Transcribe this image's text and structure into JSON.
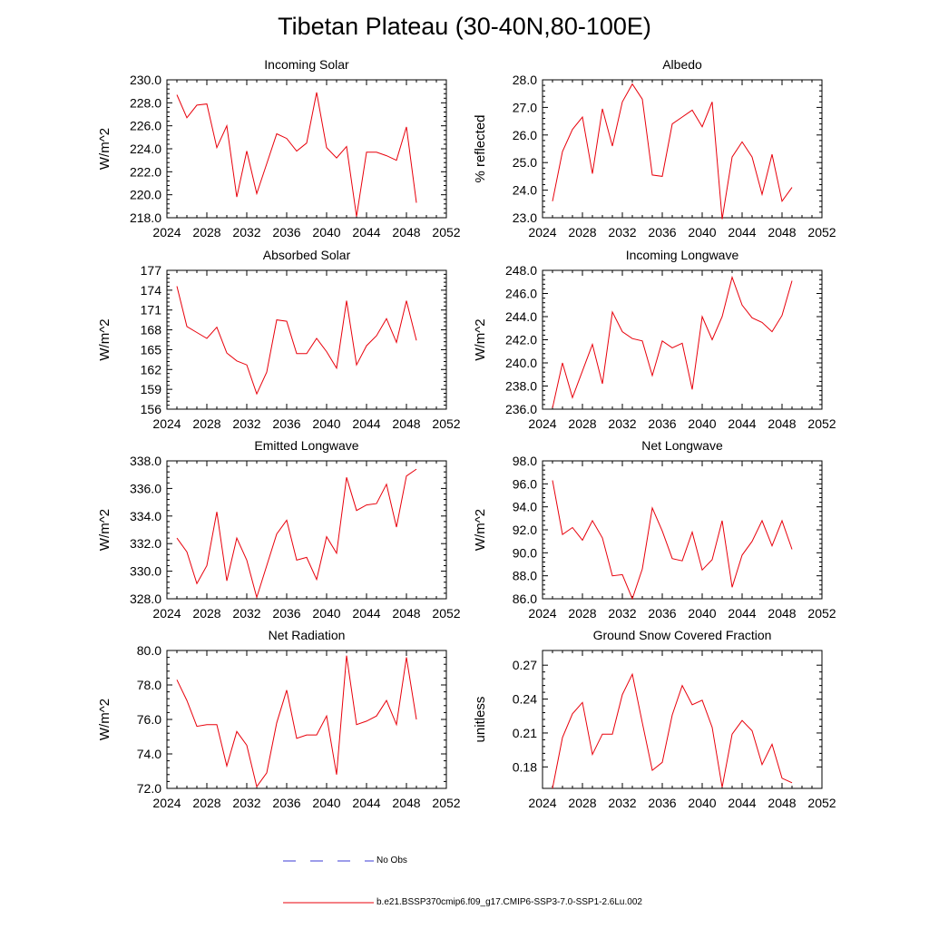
{
  "page": {
    "title": "Tibetan Plateau (30-40N,80-100E)"
  },
  "legend": {
    "obs_label": "No Obs",
    "model_label": "b.e21.BSSP370cmip6.f09_g17.CMIP6-SSP3-7.0-SSP1-2.6Lu.002",
    "obs_color": "#3b3bd6",
    "model_color": "#e8000b"
  },
  "chart_data": [
    {
      "type": "line",
      "title": "Incoming Solar",
      "ylabel": "W/m^2",
      "xlim": [
        2024,
        2052
      ],
      "xticks": [
        "2024",
        "2028",
        "2032",
        "2036",
        "2040",
        "2044",
        "2048",
        "2052"
      ],
      "ylim": [
        218,
        230
      ],
      "yticks": [
        "218.0",
        "220.0",
        "222.0",
        "224.0",
        "226.0",
        "228.0",
        "230.0"
      ],
      "x": [
        2025,
        2026,
        2027,
        2028,
        2029,
        2030,
        2031,
        2032,
        2033,
        2034,
        2035,
        2036,
        2037,
        2038,
        2039,
        2040,
        2041,
        2042,
        2043,
        2044,
        2045,
        2046,
        2047,
        2048,
        2049
      ],
      "series": [
        {
          "color": "#e8000b",
          "values": [
            228.7,
            226.7,
            227.8,
            227.9,
            224.1,
            226.0,
            219.8,
            223.8,
            220.1,
            222.7,
            225.3,
            224.9,
            223.8,
            224.5,
            228.9,
            224.1,
            223.2,
            224.2,
            218.1,
            223.7,
            223.7,
            223.4,
            223.0,
            225.9,
            219.3
          ]
        }
      ]
    },
    {
      "type": "line",
      "title": "Albedo",
      "ylabel": "% reflected",
      "xlim": [
        2024,
        2052
      ],
      "xticks": [
        "2024",
        "2028",
        "2032",
        "2036",
        "2040",
        "2044",
        "2048",
        "2052"
      ],
      "ylim": [
        23,
        28
      ],
      "yticks": [
        "23.0",
        "24.0",
        "25.0",
        "26.0",
        "27.0",
        "28.0"
      ],
      "x": [
        2025,
        2026,
        2027,
        2028,
        2029,
        2030,
        2031,
        2032,
        2033,
        2034,
        2035,
        2036,
        2037,
        2038,
        2039,
        2040,
        2041,
        2042,
        2043,
        2044,
        2045,
        2046,
        2047,
        2048,
        2049
      ],
      "series": [
        {
          "color": "#e8000b",
          "values": [
            23.6,
            25.4,
            26.2,
            26.65,
            24.6,
            26.95,
            25.6,
            27.2,
            27.85,
            27.3,
            24.55,
            24.5,
            26.4,
            26.65,
            26.9,
            26.3,
            27.2,
            22.95,
            25.2,
            25.75,
            25.2,
            23.85,
            25.3,
            23.6,
            24.1
          ]
        }
      ]
    },
    {
      "type": "line",
      "title": "Absorbed Solar",
      "ylabel": "W/m^2",
      "xlim": [
        2024,
        2052
      ],
      "xticks": [
        "2024",
        "2028",
        "2032",
        "2036",
        "2040",
        "2044",
        "2048",
        "2052"
      ],
      "ylim": [
        156,
        177
      ],
      "yticks": [
        "156",
        "159",
        "162",
        "165",
        "168",
        "171",
        "174",
        "177"
      ],
      "x": [
        2025,
        2026,
        2027,
        2028,
        2029,
        2030,
        2031,
        2032,
        2033,
        2034,
        2035,
        2036,
        2037,
        2038,
        2039,
        2040,
        2041,
        2042,
        2043,
        2044,
        2045,
        2046,
        2047,
        2048,
        2049
      ],
      "series": [
        {
          "color": "#e8000b",
          "values": [
            174.6,
            168.5,
            167.6,
            166.7,
            168.4,
            164.5,
            163.3,
            162.7,
            158.3,
            161.6,
            169.5,
            169.3,
            164.4,
            164.4,
            166.7,
            164.7,
            162.2,
            172.4,
            162.7,
            165.6,
            167.1,
            169.7,
            166.1,
            172.4,
            166.4
          ]
        }
      ]
    },
    {
      "type": "line",
      "title": "Incoming Longwave",
      "ylabel": "W/m^2",
      "xlim": [
        2024,
        2052
      ],
      "xticks": [
        "2024",
        "2028",
        "2032",
        "2036",
        "2040",
        "2044",
        "2048",
        "2052"
      ],
      "ylim": [
        236,
        248
      ],
      "yticks": [
        "236.0",
        "238.0",
        "240.0",
        "242.0",
        "244.0",
        "246.0",
        "248.0"
      ],
      "x": [
        2025,
        2026,
        2027,
        2028,
        2029,
        2030,
        2031,
        2032,
        2033,
        2034,
        2035,
        2036,
        2037,
        2038,
        2039,
        2040,
        2041,
        2042,
        2043,
        2044,
        2045,
        2046,
        2047,
        2048,
        2049
      ],
      "series": [
        {
          "color": "#e8000b",
          "values": [
            236.1,
            240.0,
            237.0,
            239.3,
            241.6,
            238.2,
            244.4,
            242.7,
            242.1,
            241.9,
            238.9,
            241.9,
            241.3,
            241.7,
            237.7,
            244.0,
            242.0,
            244.0,
            247.4,
            245.0,
            243.9,
            243.5,
            242.7,
            244.1,
            247.1
          ]
        }
      ]
    },
    {
      "type": "line",
      "title": "Emitted Longwave",
      "ylabel": "W/m^2",
      "xlim": [
        2024,
        2052
      ],
      "xticks": [
        "2024",
        "2028",
        "2032",
        "2036",
        "2040",
        "2044",
        "2048",
        "2052"
      ],
      "ylim": [
        328,
        338
      ],
      "yticks": [
        "328.0",
        "330.0",
        "332.0",
        "334.0",
        "336.0",
        "338.0"
      ],
      "x": [
        2025,
        2026,
        2027,
        2028,
        2029,
        2030,
        2031,
        2032,
        2033,
        2034,
        2035,
        2036,
        2037,
        2038,
        2039,
        2040,
        2041,
        2042,
        2043,
        2044,
        2045,
        2046,
        2047,
        2048,
        2049
      ],
      "series": [
        {
          "color": "#e8000b",
          "values": [
            332.4,
            331.4,
            329.1,
            330.4,
            334.3,
            329.3,
            332.4,
            330.8,
            328.1,
            330.4,
            332.7,
            333.7,
            330.8,
            331.0,
            329.4,
            332.5,
            331.3,
            336.8,
            334.4,
            334.8,
            334.9,
            336.3,
            333.2,
            336.9,
            337.4
          ]
        }
      ]
    },
    {
      "type": "line",
      "title": "Net Longwave",
      "ylabel": "W/m^2",
      "xlim": [
        2024,
        2052
      ],
      "xticks": [
        "2024",
        "2028",
        "2032",
        "2036",
        "2040",
        "2044",
        "2048",
        "2052"
      ],
      "ylim": [
        86,
        98
      ],
      "yticks": [
        "86.0",
        "88.0",
        "90.0",
        "92.0",
        "94.0",
        "96.0",
        "98.0"
      ],
      "x": [
        2025,
        2026,
        2027,
        2028,
        2029,
        2030,
        2031,
        2032,
        2033,
        2034,
        2035,
        2036,
        2037,
        2038,
        2039,
        2040,
        2041,
        2042,
        2043,
        2044,
        2045,
        2046,
        2047,
        2048,
        2049
      ],
      "series": [
        {
          "color": "#e8000b",
          "values": [
            96.3,
            91.6,
            92.2,
            91.1,
            92.8,
            91.3,
            88.0,
            88.1,
            86.0,
            88.6,
            93.9,
            91.9,
            89.5,
            89.3,
            91.8,
            88.5,
            89.4,
            92.8,
            87.0,
            89.8,
            91.0,
            92.8,
            90.6,
            92.8,
            90.3
          ]
        }
      ]
    },
    {
      "type": "line",
      "title": "Net Radiation",
      "ylabel": "W/m^2",
      "xlim": [
        2024,
        2052
      ],
      "xticks": [
        "2024",
        "2028",
        "2032",
        "2036",
        "2040",
        "2044",
        "2048",
        "2052"
      ],
      "ylim": [
        72,
        80
      ],
      "yticks": [
        "72.0",
        "74.0",
        "76.0",
        "78.0",
        "80.0"
      ],
      "x": [
        2025,
        2026,
        2027,
        2028,
        2029,
        2030,
        2031,
        2032,
        2033,
        2034,
        2035,
        2036,
        2037,
        2038,
        2039,
        2040,
        2041,
        2042,
        2043,
        2044,
        2045,
        2046,
        2047,
        2048,
        2049
      ],
      "series": [
        {
          "color": "#e8000b",
          "values": [
            78.3,
            77.1,
            75.6,
            75.7,
            75.7,
            73.3,
            75.3,
            74.5,
            72.1,
            72.9,
            75.8,
            77.7,
            74.9,
            75.1,
            75.1,
            76.2,
            72.8,
            79.7,
            75.7,
            75.9,
            76.2,
            77.1,
            75.7,
            79.6,
            76.0
          ]
        }
      ]
    },
    {
      "type": "line",
      "title": "Ground Snow Covered Fraction",
      "ylabel": "unitless",
      "xlim": [
        2024,
        2052
      ],
      "xticks": [
        "2024",
        "2028",
        "2032",
        "2036",
        "2040",
        "2044",
        "2048",
        "2052"
      ],
      "ylim": [
        0.161,
        0.283
      ],
      "yticks": [
        "0.18",
        "0.21",
        "0.24",
        "0.27"
      ],
      "ytick_values": [
        0.18,
        0.21,
        0.24,
        0.27
      ],
      "x": [
        2025,
        2026,
        2027,
        2028,
        2029,
        2030,
        2031,
        2032,
        2033,
        2034,
        2035,
        2036,
        2037,
        2038,
        2039,
        2040,
        2041,
        2042,
        2043,
        2044,
        2045,
        2046,
        2047,
        2048,
        2049
      ],
      "series": [
        {
          "color": "#e8000b",
          "values": [
            0.161,
            0.206,
            0.227,
            0.237,
            0.191,
            0.209,
            0.209,
            0.244,
            0.262,
            0.219,
            0.177,
            0.184,
            0.226,
            0.252,
            0.235,
            0.239,
            0.215,
            0.162,
            0.209,
            0.221,
            0.212,
            0.182,
            0.2,
            0.17,
            0.166
          ]
        }
      ]
    }
  ]
}
